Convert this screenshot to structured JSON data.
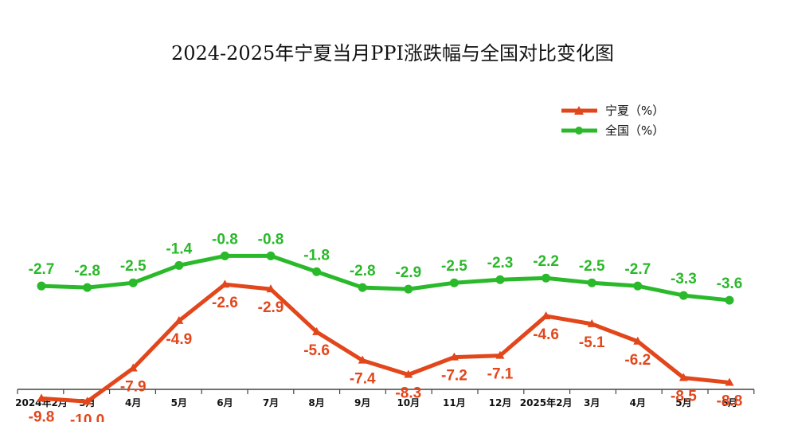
{
  "chart_data": {
    "type": "line",
    "title": "2024-2025年宁夏当月PPI涨跌幅与全国对比变化图",
    "categories": [
      "2024年2月",
      "3月",
      "4月",
      "5月",
      "6月",
      "7月",
      "8月",
      "9月",
      "10月",
      "11月",
      "12月",
      "2025年2月",
      "3月",
      "4月",
      "5月",
      "6月"
    ],
    "series": [
      {
        "name": "宁夏（%）",
        "color": "#e2461b",
        "marker": "triangle",
        "values": [
          -9.8,
          -10.0,
          -7.9,
          -4.9,
          -2.6,
          -2.9,
          -5.6,
          -7.4,
          -8.3,
          -7.2,
          -7.1,
          -4.6,
          -5.1,
          -6.2,
          -8.5,
          -8.8
        ]
      },
      {
        "name": "全国（%）",
        "color": "#2ab92a",
        "marker": "circle",
        "values": [
          -2.7,
          -2.8,
          -2.5,
          -1.4,
          -0.8,
          -0.8,
          -1.8,
          -2.8,
          -2.9,
          -2.5,
          -2.3,
          -2.2,
          -2.5,
          -2.7,
          -3.3,
          -3.6
        ]
      }
    ],
    "data_labels": {
      "nx": [
        "-9.8",
        "-10.0",
        "-7.9",
        "-4.9",
        "-2.6",
        "-2.9",
        "-5.6",
        "-7.4",
        "-8.3",
        "-7.2",
        "-7.1",
        "-4.6",
        "-5.1",
        "-6.2",
        "-8.5",
        "-8.8"
      ],
      "qg": [
        "-2.7",
        "-2.8",
        "-2.5",
        "-1.4",
        "-0.8",
        "-0.8",
        "-1.8",
        "-2.8",
        "-2.9",
        "-2.5",
        "-2.3",
        "-2.2",
        "-2.5",
        "-2.7",
        "-3.3",
        "-3.6"
      ]
    },
    "legend_position": "top-right",
    "grid": false,
    "xlabel": "",
    "ylabel": ""
  }
}
